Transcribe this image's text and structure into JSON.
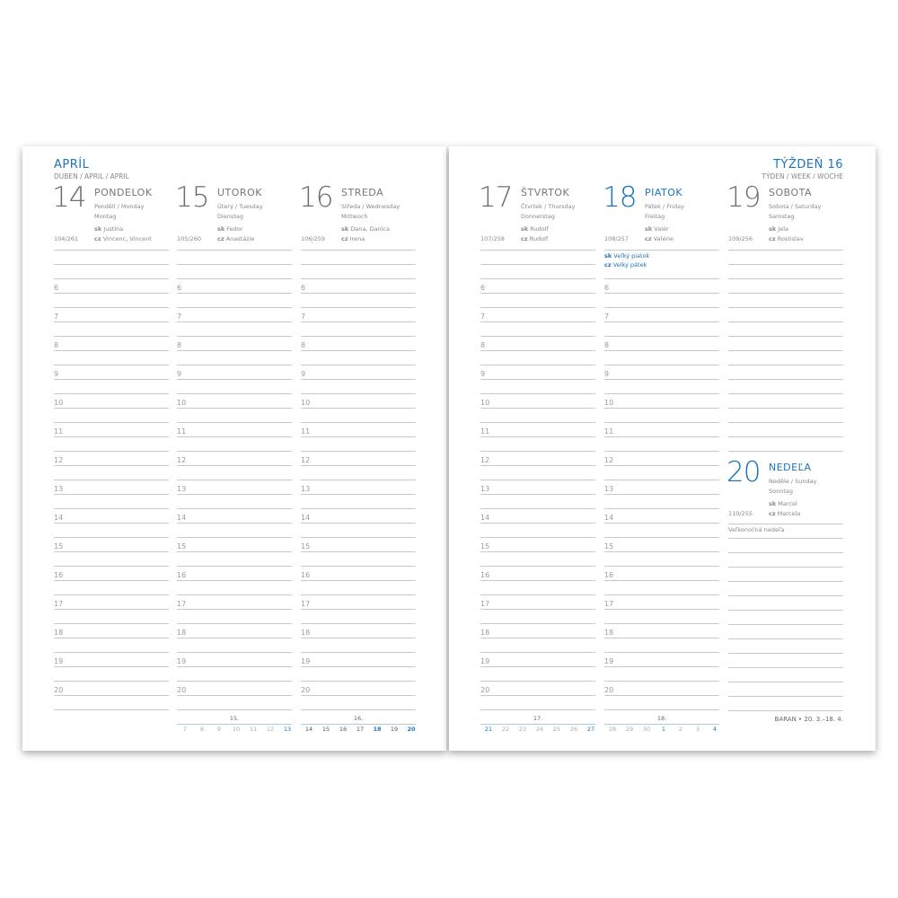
{
  "left_header": {
    "month": "APRÍL",
    "subtitle": "DUBEN / APRIL / APRIL"
  },
  "right_header": {
    "week": "TÝŽDEŇ 16",
    "subtitle": "TÝDEN / WEEK / WOCHE"
  },
  "colors": {
    "accent": "#1b75bc",
    "text": "#777777",
    "rule": "#c9c9c9"
  },
  "hours": [
    "6",
    "7",
    "8",
    "9",
    "10",
    "11",
    "12",
    "13",
    "14",
    "15",
    "16",
    "17",
    "18",
    "19",
    "20"
  ],
  "days": [
    {
      "num": "14",
      "name": "PONDELOK",
      "tr1": "Pondělí / Monday",
      "tr2": "Montag",
      "sk_label": "sk",
      "sk": "Justína",
      "cz_label": "cz",
      "cz": "Vincenc, Vincent",
      "count": "104/261",
      "highlight": false
    },
    {
      "num": "15",
      "name": "UTOROK",
      "tr1": "Úterý / Tuesday",
      "tr2": "Dienstag",
      "sk_label": "sk",
      "sk": "Fedor",
      "cz_label": "cz",
      "cz": "Anastázie",
      "count": "105/260",
      "highlight": false
    },
    {
      "num": "16",
      "name": "STREDA",
      "tr1": "Středa / Wednesday",
      "tr2": "Mittwoch",
      "sk_label": "sk",
      "sk": "Dana, Danica",
      "cz_label": "cz",
      "cz": "Irena",
      "count": "106/259",
      "highlight": false
    },
    {
      "num": "17",
      "name": "ŠTVRTOK",
      "tr1": "Čtvrtek / Thursday",
      "tr2": "Donnerstag",
      "sk_label": "sk",
      "sk": "Rudolf",
      "cz_label": "cz",
      "cz": "Rudolf",
      "count": "107/258",
      "highlight": false
    },
    {
      "num": "18",
      "name": "PIATOK",
      "tr1": "Pátek / Friday",
      "tr2": "Freitag",
      "sk_label": "sk",
      "sk": "Valér",
      "cz_label": "cz",
      "cz": "Valérie",
      "count": "108/257",
      "highlight": true,
      "holiday": {
        "sk_label": "sk",
        "sk": "Veľký piatok",
        "cz_label": "cz",
        "cz": "Velký pátek"
      }
    },
    {
      "num": "19",
      "name": "SOBOTA",
      "tr1": "Sobota / Saturday",
      "tr2": "Samstag",
      "sk_label": "sk",
      "sk": "Jela",
      "cz_label": "cz",
      "cz": "Rostislav",
      "count": "109/256",
      "highlight": false
    },
    {
      "num": "20",
      "name": "NEDEĽA",
      "tr1": "Neděle / Sunday",
      "tr2": "Sonntag",
      "sk_label": "sk",
      "sk": "Marcel",
      "cz_label": "cz",
      "cz": "Marcela",
      "count": "110/255",
      "highlight": true,
      "note": "Veľkonočná nedeľa"
    }
  ],
  "mini_calendars": [
    {
      "week": "15.",
      "current": false,
      "days": [
        {
          "d": "7",
          "blue": false
        },
        {
          "d": "8",
          "blue": false
        },
        {
          "d": "9",
          "blue": false
        },
        {
          "d": "10",
          "blue": false
        },
        {
          "d": "11",
          "blue": false
        },
        {
          "d": "12",
          "blue": false
        },
        {
          "d": "13",
          "blue": true
        }
      ]
    },
    {
      "week": "16.",
      "current": true,
      "days": [
        {
          "d": "14",
          "blue": false
        },
        {
          "d": "15",
          "blue": false
        },
        {
          "d": "16",
          "blue": false
        },
        {
          "d": "17",
          "blue": false
        },
        {
          "d": "18",
          "blue": true
        },
        {
          "d": "19",
          "blue": false
        },
        {
          "d": "20",
          "blue": true
        }
      ]
    },
    {
      "week": "17.",
      "current": false,
      "days": [
        {
          "d": "21",
          "blue": true
        },
        {
          "d": "22",
          "blue": false
        },
        {
          "d": "23",
          "blue": false
        },
        {
          "d": "24",
          "blue": false
        },
        {
          "d": "25",
          "blue": false
        },
        {
          "d": "26",
          "blue": false
        },
        {
          "d": "27",
          "blue": true
        }
      ]
    },
    {
      "week": "18.",
      "current": false,
      "days": [
        {
          "d": "28",
          "blue": false
        },
        {
          "d": "29",
          "blue": false
        },
        {
          "d": "30",
          "blue": false
        },
        {
          "d": "1",
          "blue": true
        },
        {
          "d": "2",
          "blue": false
        },
        {
          "d": "3",
          "blue": false
        },
        {
          "d": "4",
          "blue": true
        }
      ]
    }
  ],
  "zodiac": "BARAN • 20. 3.–18. 4."
}
